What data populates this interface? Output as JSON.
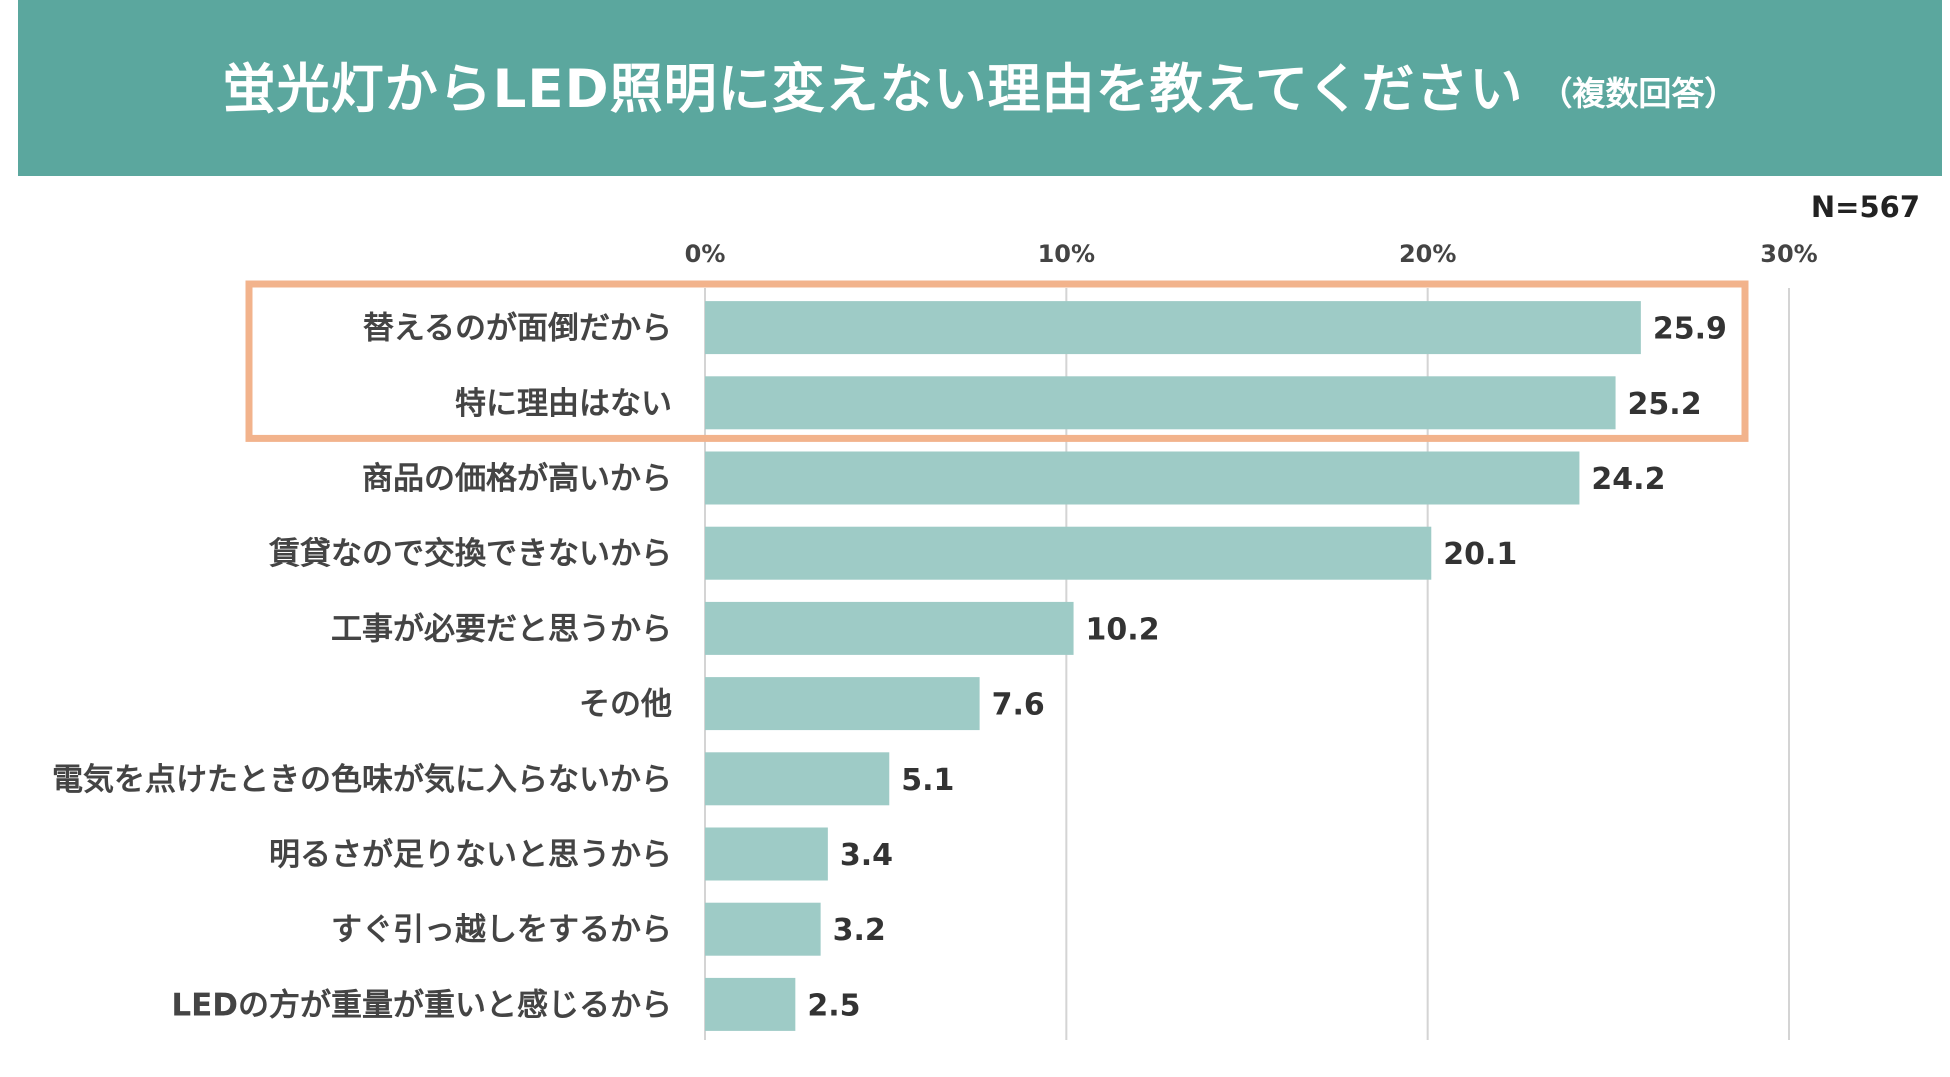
{
  "header": {
    "title": "蛍光灯からLED照明に変えない理由を教えてください",
    "subtitle": "（複数回答）"
  },
  "sample_size": "N=567",
  "colors": {
    "header_bg": "#5ba79e",
    "bar": "#9ecbc6",
    "highlight": "#f2b38c",
    "grid": "#d4d4d4"
  },
  "chart_data": {
    "type": "bar",
    "orientation": "horizontal",
    "title": "蛍光灯からLED照明に変えない理由を教えてください",
    "categories": [
      "替えるのが面倒だから",
      "特に理由はない",
      "商品の価格が高いから",
      "賃貸なので交換できないから",
      "工事が必要だと思うから",
      "その他",
      "電気を点けたときの色味が気に入らないから",
      "明るさが足りないと思うから",
      "すぐ引っ越しをするから",
      "LEDの方が重量が重いと感じるから"
    ],
    "values": [
      25.9,
      25.2,
      24.2,
      20.1,
      10.2,
      7.6,
      5.1,
      3.4,
      3.2,
      2.5
    ],
    "value_labels": [
      "25.9",
      "25.2",
      "24.2",
      "20.1",
      "10.2",
      "7.6",
      "5.1",
      "3.4",
      "3.2",
      "2.5"
    ],
    "xlim": [
      0,
      30
    ],
    "ticks": [
      0,
      10,
      20,
      30
    ],
    "tick_labels": [
      "0%",
      "10%",
      "20%",
      "30%"
    ],
    "xaxis_position": "top",
    "grid": true,
    "legend": "none",
    "highlighted_categories": [
      "替えるのが面倒だから",
      "特に理由はない"
    ]
  }
}
